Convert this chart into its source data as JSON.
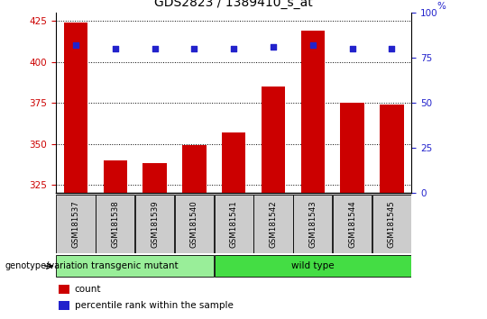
{
  "title": "GDS2823 / 1389410_s_at",
  "samples": [
    "GSM181537",
    "GSM181538",
    "GSM181539",
    "GSM181540",
    "GSM181541",
    "GSM181542",
    "GSM181543",
    "GSM181544",
    "GSM181545"
  ],
  "counts": [
    424,
    340,
    338,
    349,
    357,
    385,
    419,
    375,
    374
  ],
  "percentile_ranks": [
    82,
    80,
    80,
    80,
    80,
    81,
    82,
    80,
    80
  ],
  "ylim_left": [
    320,
    430
  ],
  "yticks_left": [
    325,
    350,
    375,
    400,
    425
  ],
  "ylim_right": [
    0,
    100
  ],
  "yticks_right": [
    0,
    25,
    50,
    75,
    100
  ],
  "bar_color": "#cc0000",
  "dot_color": "#2222cc",
  "group1_label": "transgenic mutant",
  "group1_samples": [
    0,
    1,
    2,
    3
  ],
  "group2_label": "wild type",
  "group2_samples": [
    4,
    5,
    6,
    7,
    8
  ],
  "group_bg1": "#99ee99",
  "group_bg2": "#44dd44",
  "sample_bg": "#cccccc",
  "ylabel_left_color": "#cc0000",
  "ylabel_right_color": "#2222cc",
  "grid_color": "#000000",
  "title_fontsize": 10,
  "tick_fontsize": 7.5,
  "label_fontsize": 7.5
}
